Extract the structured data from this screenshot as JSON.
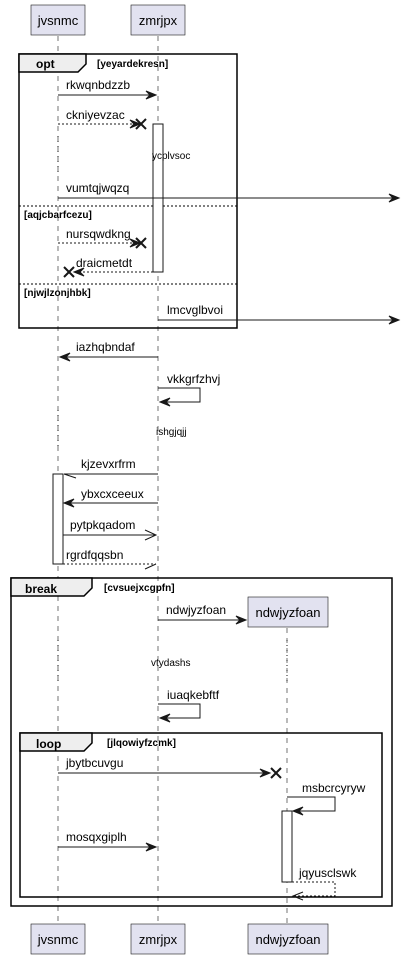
{
  "diagram": {
    "type": "sequence",
    "participants": [
      {
        "id": "p1",
        "name": "jvsnmc"
      },
      {
        "id": "p2",
        "name": "zmrjpx"
      },
      {
        "id": "p3",
        "name": "ndwjyzfoan"
      }
    ],
    "frames": {
      "opt": {
        "keyword": "opt",
        "guard": "[yeyardekresn]",
        "else1": "[aqjcbarfcezu]",
        "else2": "[njwjlzonjhbk]"
      },
      "break": {
        "keyword": "break",
        "guard": "[cvsuejxcgpfn]"
      },
      "loop": {
        "keyword": "loop",
        "guard": "[jlqowiyfzcmk]"
      }
    },
    "messages": [
      {
        "id": "m1",
        "from": "jvsnmc",
        "to": "zmrjpx",
        "label": "rkwqnbdzzb",
        "style": "sync"
      },
      {
        "id": "m2",
        "from": "jvsnmc",
        "to": "zmrjpx",
        "label": "ckniyevzac",
        "style": "lost-dashed"
      },
      {
        "id": "m3",
        "from": "jvsnmc",
        "to": "outside",
        "label": "vumtqjwqzq",
        "style": "sync"
      },
      {
        "id": "m4",
        "from": "jvsnmc",
        "to": "zmrjpx",
        "label": "nursqwdkng",
        "style": "lost-dashed"
      },
      {
        "id": "m5",
        "from": "zmrjpx",
        "to": "jvsnmc",
        "label": "draicmetdt",
        "style": "lost-dashed"
      },
      {
        "id": "m6",
        "from": "zmrjpx",
        "to": "outside",
        "label": "lmcvglbvoi",
        "style": "sync"
      },
      {
        "id": "m7",
        "from": "zmrjpx",
        "to": "jvsnmc",
        "label": "iazhqbndaf",
        "style": "sync"
      },
      {
        "id": "m8",
        "from": "zmrjpx",
        "to": "zmrjpx",
        "label": "vkkgrfzhvj",
        "style": "self"
      },
      {
        "id": "m9",
        "from": "zmrjpx",
        "to": "jvsnmc",
        "label": "kjzevxrfrm",
        "style": "half"
      },
      {
        "id": "m10",
        "from": "zmrjpx",
        "to": "jvsnmc",
        "label": "ybxcxceeux",
        "style": "sync"
      },
      {
        "id": "m11",
        "from": "jvsnmc",
        "to": "zmrjpx",
        "label": "pytpkqadom",
        "style": "open"
      },
      {
        "id": "m12",
        "from": "jvsnmc",
        "to": "zmrjpx",
        "label": "rgrdfqqsbn",
        "style": "dashed-half"
      },
      {
        "id": "m13",
        "from": "zmrjpx",
        "to": "ndwjyzfoan",
        "label": "ndwjyzfoan",
        "style": "create"
      },
      {
        "id": "m14",
        "from": "zmrjpx",
        "to": "zmrjpx",
        "label": "iuaqkebftf",
        "style": "self"
      },
      {
        "id": "m15",
        "from": "jvsnmc",
        "to": "ndwjyzfoan",
        "label": "jbytbcuvgu",
        "style": "lost"
      },
      {
        "id": "m16",
        "from": "ndwjyzfoan",
        "to": "ndwjyzfoan",
        "label": "msbcrcyryw",
        "style": "self"
      },
      {
        "id": "m17",
        "from": "jvsnmc",
        "to": "zmrjpx",
        "label": "mosqxgiplh",
        "style": "sync"
      },
      {
        "id": "m18",
        "from": "ndwjyzfoan",
        "to": "ndwjyzfoan",
        "label": "jqyusclswk",
        "style": "self-dashed"
      }
    ],
    "delays": [
      {
        "id": "d1",
        "label": "ycplvsoc"
      },
      {
        "id": "d2",
        "label": "ishgjqjj"
      },
      {
        "id": "d3",
        "label": "vtydashs"
      }
    ]
  }
}
